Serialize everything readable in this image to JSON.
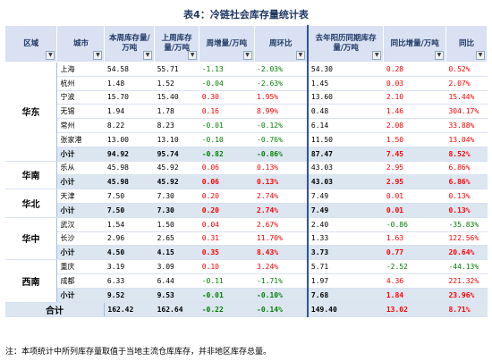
{
  "title": "表4：冷链社会库存量统计表",
  "headers": [
    "区域",
    "城市",
    "本周库存量/万吨",
    "上周库存量/万吨",
    "周增量/万吨",
    "周环比",
    "去年阳历同期库存量/万吨",
    "同比增量/万吨",
    "同比"
  ],
  "regions": [
    {
      "name": "华东",
      "rows": [
        {
          "city": "上海",
          "cur": "54.58",
          "last": "55.71",
          "wk": "-1.13",
          "wkp": "-2.03%",
          "ly": "54.30",
          "yoy": "0.28",
          "yoyp": "0.52%"
        },
        {
          "city": "杭州",
          "cur": "1.48",
          "last": "1.52",
          "wk": "-0.04",
          "wkp": "-2.63%",
          "ly": "1.45",
          "yoy": "0.03",
          "yoyp": "2.07%"
        },
        {
          "city": "宁波",
          "cur": "15.70",
          "last": "15.40",
          "wk": "0.30",
          "wkp": "1.95%",
          "ly": "13.60",
          "yoy": "2.10",
          "yoyp": "15.44%"
        },
        {
          "city": "无锡",
          "cur": "1.94",
          "last": "1.78",
          "wk": "0.16",
          "wkp": "8.99%",
          "ly": "0.48",
          "yoy": "1.46",
          "yoyp": "304.17%"
        },
        {
          "city": "常州",
          "cur": "8.22",
          "last": "8.23",
          "wk": "-0.01",
          "wkp": "-0.12%",
          "ly": "6.14",
          "yoy": "2.08",
          "yoyp": "33.88%"
        },
        {
          "city": "张家港",
          "cur": "13.00",
          "last": "13.10",
          "wk": "-0.10",
          "wkp": "-0.76%",
          "ly": "11.50",
          "yoy": "1.50",
          "yoyp": "13.04%"
        }
      ],
      "sub": {
        "label": "小计",
        "cur": "94.92",
        "last": "95.74",
        "wk": "-0.82",
        "wkp": "-0.86%",
        "ly": "87.47",
        "yoy": "7.45",
        "yoyp": "8.52%"
      }
    },
    {
      "name": "华南",
      "rows": [
        {
          "city": "乐从",
          "cur": "45.98",
          "last": "45.92",
          "wk": "0.06",
          "wkp": "0.13%",
          "ly": "43.03",
          "yoy": "2.95",
          "yoyp": "6.86%"
        }
      ],
      "sub": {
        "label": "小计",
        "cur": "45.98",
        "last": "45.92",
        "wk": "0.06",
        "wkp": "0.13%",
        "ly": "43.03",
        "yoy": "2.95",
        "yoyp": "6.86%"
      }
    },
    {
      "name": "华北",
      "rows": [
        {
          "city": "天津",
          "cur": "7.50",
          "last": "7.30",
          "wk": "0.20",
          "wkp": "2.74%",
          "ly": "7.49",
          "yoy": "0.01",
          "yoyp": "0.13%"
        }
      ],
      "sub": {
        "label": "小计",
        "cur": "7.50",
        "last": "7.30",
        "wk": "0.20",
        "wkp": "2.74%",
        "ly": "7.49",
        "yoy": "0.01",
        "yoyp": "0.13%"
      }
    },
    {
      "name": "华中",
      "rows": [
        {
          "city": "武汉",
          "cur": "1.54",
          "last": "1.50",
          "wk": "0.04",
          "wkp": "2.67%",
          "ly": "2.40",
          "yoy": "-0.86",
          "yoyp": "-35.83%"
        },
        {
          "city": "长沙",
          "cur": "2.96",
          "last": "2.65",
          "wk": "0.31",
          "wkp": "11.70%",
          "ly": "1.33",
          "yoy": "1.63",
          "yoyp": "122.56%"
        }
      ],
      "sub": {
        "label": "小计",
        "cur": "4.50",
        "last": "4.15",
        "wk": "0.35",
        "wkp": "8.43%",
        "ly": "3.73",
        "yoy": "0.77",
        "yoyp": "20.64%"
      }
    },
    {
      "name": "西南",
      "rows": [
        {
          "city": "重庆",
          "cur": "3.19",
          "last": "3.09",
          "wk": "0.10",
          "wkp": "3.24%",
          "ly": "5.71",
          "yoy": "-2.52",
          "yoyp": "-44.13%"
        },
        {
          "city": "成都",
          "cur": "6.33",
          "last": "6.44",
          "wk": "-0.11",
          "wkp": "-1.71%",
          "ly": "1.97",
          "yoy": "4.36",
          "yoyp": "221.32%"
        }
      ],
      "sub": {
        "label": "小计",
        "cur": "9.52",
        "last": "9.53",
        "wk": "-0.01",
        "wkp": "-0.10%",
        "ly": "7.68",
        "yoy": "1.84",
        "yoyp": "23.96%"
      }
    }
  ],
  "total": {
    "label": "合计",
    "cur": "162.42",
    "last": "162.64",
    "wk": "-0.22",
    "wkp": "-0.14%",
    "ly": "149.40",
    "yoy": "13.02",
    "yoyp": "8.71%"
  },
  "filter_icon": "dropdown-arrow-icon",
  "colors": {
    "header_bg": "#d9e1f2",
    "subtotal_bg": "#dce6f1",
    "negative": "#008000",
    "positive": "#ff0000"
  },
  "note": "注：本项统计中所列库存量取值于当地主流仓库库存，并非地区库存总量。"
}
